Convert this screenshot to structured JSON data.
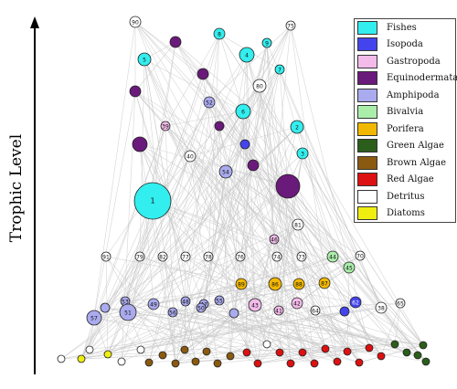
{
  "axis": {
    "label": "Trophic Level"
  },
  "legend": [
    {
      "name": "Fishes",
      "color": "#33eeee"
    },
    {
      "name": "Isopoda",
      "color": "#4444ee"
    },
    {
      "name": "Gastropoda",
      "color": "#f2bbea"
    },
    {
      "name": "Equinodermata",
      "color": "#6a1a7a"
    },
    {
      "name": "Amphipoda",
      "color": "#aaaaee"
    },
    {
      "name": "Bivalvia",
      "color": "#aaeeaa"
    },
    {
      "name": "Porifera",
      "color": "#f2b800"
    },
    {
      "name": "Green Algae",
      "color": "#2a5e1a"
    },
    {
      "name": "Brown Algae",
      "color": "#8a5a10"
    },
    {
      "name": "Red Algae",
      "color": "#dd1111"
    },
    {
      "name": "Detritus",
      "color": "#ffffff"
    },
    {
      "name": "Diatoms",
      "color": "#eeee11"
    }
  ],
  "nodes": [
    {
      "label": "90",
      "group": "Detritus"
    },
    {
      "label": "8",
      "group": "Fishes"
    },
    {
      "label": "75",
      "group": "Detritus"
    },
    {
      "label": "5",
      "group": "Fishes"
    },
    {
      "label": "4",
      "group": "Fishes"
    },
    {
      "label": "9",
      "group": "Fishes"
    },
    {
      "label": "7",
      "group": "Fishes"
    },
    {
      "label": "80",
      "group": "Detritus"
    },
    {
      "label": "52",
      "group": "Amphipoda"
    },
    {
      "label": "6",
      "group": "Fishes"
    },
    {
      "label": "39",
      "group": "Gastropoda"
    },
    {
      "label": "2",
      "group": "Fishes"
    },
    {
      "label": "40",
      "group": "Detritus"
    },
    {
      "label": "3",
      "group": "Fishes"
    },
    {
      "label": "54",
      "group": "Amphipoda"
    },
    {
      "label": "1",
      "group": "Fishes"
    },
    {
      "label": "81",
      "group": "Detritus"
    },
    {
      "label": "46",
      "group": "Gastropoda"
    },
    {
      "label": "91",
      "group": "Detritus"
    },
    {
      "label": "79",
      "group": "Detritus"
    },
    {
      "label": "82",
      "group": "Detritus"
    },
    {
      "label": "77",
      "group": "Detritus"
    },
    {
      "label": "78",
      "group": "Detritus"
    },
    {
      "label": "76",
      "group": "Detritus"
    },
    {
      "label": "74",
      "group": "Detritus"
    },
    {
      "label": "73",
      "group": "Detritus"
    },
    {
      "label": "44",
      "group": "Bivalvia"
    },
    {
      "label": "70",
      "group": "Detritus"
    },
    {
      "label": "45",
      "group": "Bivalvia"
    },
    {
      "label": "89",
      "group": "Porifera"
    },
    {
      "label": "86",
      "group": "Porifera"
    },
    {
      "label": "88",
      "group": "Porifera"
    },
    {
      "label": "87",
      "group": "Porifera"
    },
    {
      "label": "53",
      "group": "Amphipoda"
    },
    {
      "label": "43",
      "group": "Gastropoda"
    },
    {
      "label": "42",
      "group": "Gastropoda"
    },
    {
      "label": "49",
      "group": "Amphipoda"
    },
    {
      "label": "48",
      "group": "Amphipoda"
    },
    {
      "label": "47",
      "group": "Amphipoda"
    },
    {
      "label": "55",
      "group": "Amphipoda"
    },
    {
      "label": "50",
      "group": "Amphipoda"
    },
    {
      "label": "41",
      "group": "Gastropoda"
    },
    {
      "label": "64",
      "group": "Detritus"
    },
    {
      "label": "62",
      "group": "Isopoda"
    },
    {
      "label": "38",
      "group": "Detritus"
    },
    {
      "label": "65",
      "group": "Detritus"
    },
    {
      "label": "57",
      "group": "Amphipoda"
    },
    {
      "label": "51",
      "group": "Amphipoda"
    },
    {
      "label": "56",
      "group": "Amphipoda"
    }
  ]
}
